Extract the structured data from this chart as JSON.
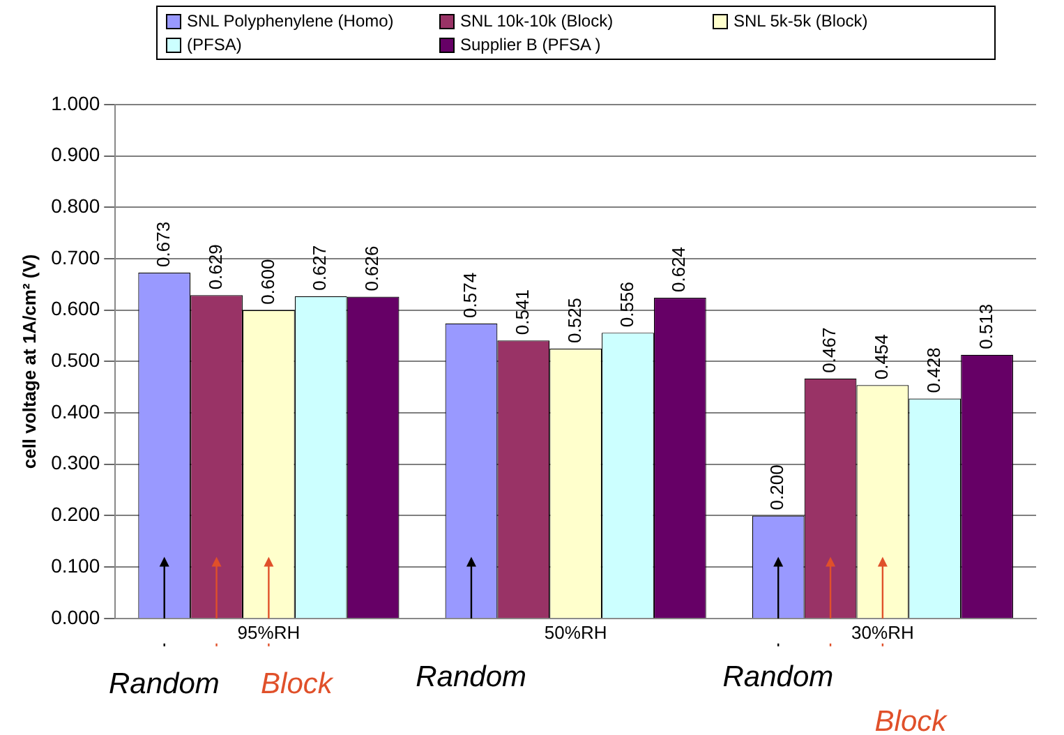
{
  "chart_data": {
    "type": "bar",
    "ylabel": "cell voltage at 1A/cm² (V)",
    "categories": [
      "95%RH",
      "50%RH",
      "30%RH"
    ],
    "series": [
      {
        "name": "SNL Polyphenylene (Homo)",
        "color": "#9999ff",
        "values": [
          0.673,
          0.574,
          0.2
        ],
        "value_labels": [
          "0.673",
          "0.574",
          "0.200"
        ]
      },
      {
        "name": "SNL 10k-10k (Block)",
        "color": "#993366",
        "values": [
          0.629,
          0.541,
          0.467
        ],
        "value_labels": [
          "0.629",
          "0.541",
          "0.467"
        ]
      },
      {
        "name": "SNL 5k-5k (Block)",
        "color": "#ffffcc",
        "values": [
          0.6,
          0.525,
          0.454
        ],
        "value_labels": [
          "0.600",
          "0.525",
          "0.454"
        ]
      },
      {
        "name": "(PFSA)",
        "color": "#ccffff",
        "values": [
          0.627,
          0.556,
          0.428
        ],
        "value_labels": [
          "0.627",
          "0.556",
          "0.428"
        ]
      },
      {
        "name": "Supplier B (PFSA )",
        "color": "#660066",
        "values": [
          0.626,
          0.624,
          0.513
        ],
        "value_labels": [
          "0.626",
          "0.624",
          "0.513"
        ]
      }
    ],
    "ylim": [
      0,
      1
    ],
    "yticks": [
      {
        "value": 0,
        "label": "0.000"
      },
      {
        "value": 0.1,
        "label": "0.100"
      },
      {
        "value": 0.2,
        "label": "0.200"
      },
      {
        "value": 0.3,
        "label": "0.300"
      },
      {
        "value": 0.4,
        "label": "0.400"
      },
      {
        "value": 0.5,
        "label": "0.500"
      },
      {
        "value": 0.6,
        "label": "0.600"
      },
      {
        "value": 0.7,
        "label": "0.700"
      },
      {
        "value": 0.8,
        "label": "0.800"
      },
      {
        "value": 0.9,
        "label": "0.900"
      },
      {
        "value": 1,
        "label": "1.000"
      }
    ],
    "grid": "y",
    "legend": "top",
    "annotations": [
      "Random",
      "Block",
      "Random",
      "Random",
      "Block"
    ]
  }
}
